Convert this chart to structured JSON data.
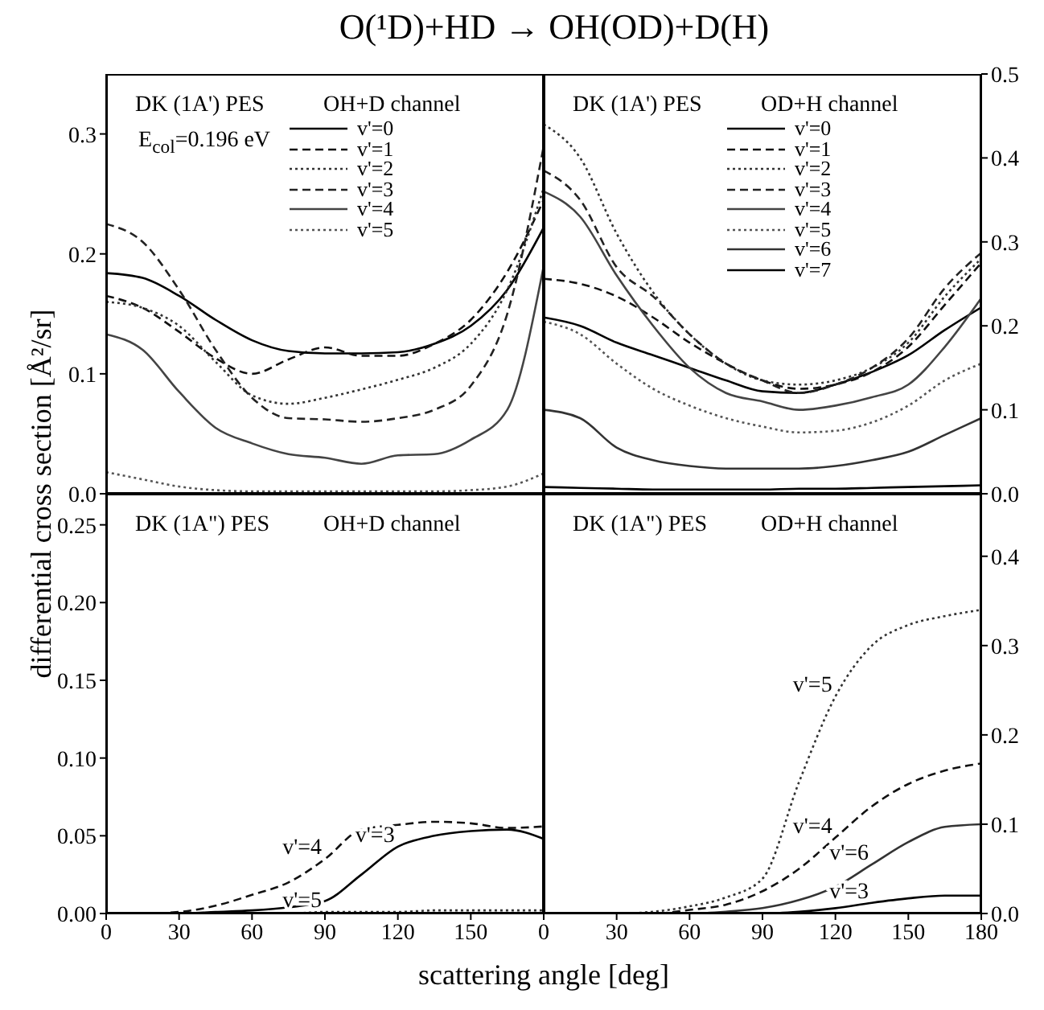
{
  "chart_data": [
    {
      "type": "line",
      "title": "O(¹D)+HD → OH(OD)+D(H)",
      "ylabel": "differential cross section [Å²/sr]",
      "annotations": [
        "DK (1A') PES",
        "OH+D channel",
        "E$_{col}$=0.196 eV"
      ],
      "legend": "top right",
      "tick_labels": "y",
      "xlim": [
        0,
        180
      ],
      "xticks": [
        0,
        30,
        60,
        90,
        120,
        150,
        180
      ],
      "ylim": [
        0,
        0.35
      ],
      "yticks": [
        {
          "value": 0,
          "label": "0.0"
        },
        0.1,
        0.2,
        0.3
      ],
      "x": [
        0,
        15,
        30,
        45,
        60,
        75,
        90,
        105,
        120,
        135,
        150,
        165,
        180
      ],
      "series": [
        {
          "name": "v'=0",
          "color": "#000000",
          "line_style": "solid",
          "values": [
            0.184,
            0.18,
            0.165,
            0.145,
            0.128,
            0.119,
            0.117,
            0.117,
            0.118,
            0.125,
            0.14,
            0.17,
            0.222
          ]
        },
        {
          "name": "v'=1",
          "color": "#111111",
          "line_style": "dashed",
          "values": [
            0.165,
            0.155,
            0.135,
            0.113,
            0.1,
            0.112,
            0.122,
            0.115,
            0.115,
            0.125,
            0.145,
            0.185,
            0.245
          ]
        },
        {
          "name": "v'=2",
          "color": "#333333",
          "line_style": "dotted",
          "values": [
            0.16,
            0.155,
            0.14,
            0.11,
            0.082,
            0.075,
            0.08,
            0.087,
            0.095,
            0.105,
            0.125,
            0.17,
            0.255
          ]
        },
        {
          "name": "v'=3",
          "color": "#222222",
          "line_style": "dashed",
          "values": [
            0.225,
            0.21,
            0.17,
            0.12,
            0.08,
            0.063,
            0.062,
            0.06,
            0.063,
            0.07,
            0.09,
            0.15,
            0.29
          ]
        },
        {
          "name": "v'=4",
          "color": "#444444",
          "line_style": "solid",
          "values": [
            0.133,
            0.12,
            0.085,
            0.055,
            0.042,
            0.033,
            0.03,
            0.025,
            0.032,
            0.033,
            0.045,
            0.07,
            0.19
          ]
        },
        {
          "name": "v'=5",
          "color": "#555555",
          "line_style": "dotted",
          "values": [
            0.018,
            0.012,
            0.006,
            0.003,
            0.002,
            0.002,
            0.002,
            0.002,
            0.002,
            0.002,
            0.003,
            0.006,
            0.017
          ]
        }
      ]
    },
    {
      "type": "line",
      "annotations": [
        "DK (1A') PES",
        "OD+H channel"
      ],
      "legend": "top right",
      "tick_labels": "y",
      "xlim": [
        0,
        180
      ],
      "xticks": [
        0,
        30,
        60,
        90,
        120,
        150,
        180
      ],
      "ylim": [
        0,
        0.5
      ],
      "yticks": [
        {
          "value": 0,
          "label": "0.0"
        },
        0.1,
        0.2,
        0.3,
        0.4,
        0.5
      ],
      "x": [
        0,
        15,
        30,
        45,
        60,
        75,
        90,
        105,
        120,
        135,
        150,
        165,
        180
      ],
      "series": [
        {
          "name": "v'=0",
          "color": "#000000",
          "line_style": "solid",
          "values": [
            0.21,
            0.2,
            0.18,
            0.165,
            0.15,
            0.135,
            0.122,
            0.12,
            0.13,
            0.145,
            0.165,
            0.195,
            0.222
          ]
        },
        {
          "name": "v'=1",
          "color": "#111111",
          "line_style": "dashed",
          "values": [
            0.256,
            0.25,
            0.235,
            0.21,
            0.18,
            0.155,
            0.135,
            0.125,
            0.13,
            0.145,
            0.175,
            0.225,
            0.275
          ]
        },
        {
          "name": "v'=2",
          "color": "#333333",
          "line_style": "dotted",
          "values": [
            0.44,
            0.4,
            0.31,
            0.24,
            0.19,
            0.155,
            0.135,
            0.13,
            0.135,
            0.15,
            0.18,
            0.235,
            0.28
          ]
        },
        {
          "name": "v'=3",
          "color": "#222222",
          "line_style": "dashed",
          "values": [
            0.385,
            0.35,
            0.27,
            0.235,
            0.19,
            0.155,
            0.135,
            0.12,
            0.13,
            0.15,
            0.185,
            0.245,
            0.287
          ]
        },
        {
          "name": "v'=4",
          "color": "#444444",
          "line_style": "solid",
          "values": [
            0.36,
            0.33,
            0.26,
            0.2,
            0.15,
            0.12,
            0.11,
            0.1,
            0.105,
            0.115,
            0.13,
            0.175,
            0.233
          ]
        },
        {
          "name": "v'=5",
          "color": "#555555",
          "line_style": "dotted",
          "values": [
            0.205,
            0.19,
            0.155,
            0.125,
            0.105,
            0.09,
            0.08,
            0.073,
            0.075,
            0.085,
            0.105,
            0.135,
            0.155
          ]
        },
        {
          "name": "v'=6",
          "color": "#333333",
          "line_style": "solid",
          "values": [
            0.1,
            0.09,
            0.055,
            0.04,
            0.033,
            0.03,
            0.03,
            0.03,
            0.033,
            0.04,
            0.05,
            0.07,
            0.09
          ]
        },
        {
          "name": "v'=7",
          "color": "#000000",
          "line_style": "solid",
          "values": [
            0.008,
            0.007,
            0.006,
            0.005,
            0.005,
            0.005,
            0.005,
            0.006,
            0.006,
            0.007,
            0.008,
            0.009,
            0.01
          ]
        }
      ]
    },
    {
      "type": "line",
      "xlabel": "scattering angle [deg]",
      "annotations": [
        "DK (1A\") PES",
        "OH+D channel"
      ],
      "xlim": [
        0,
        180
      ],
      "xticks": [
        0,
        30,
        60,
        90,
        120,
        150,
        {
          "value": 180,
          "label": null
        }
      ],
      "ylim": [
        0,
        0.27
      ],
      "yticks": [
        {
          "value": 0,
          "label": "0.00"
        },
        0.05,
        {
          "value": 0.1,
          "label": "0.10"
        },
        0.15,
        {
          "value": 0.2,
          "label": "0.20"
        },
        0.25
      ],
      "x": [
        0,
        15,
        30,
        45,
        60,
        75,
        90,
        105,
        120,
        135,
        150,
        165,
        180
      ],
      "series": [
        {
          "name": "v'=4",
          "color": "#111111",
          "line_style": "dashed",
          "values": [
            0,
            0,
            0.001,
            0.005,
            0.012,
            0.02,
            0.035,
            0.054,
            0.057,
            0.059,
            0.058,
            0.055,
            0.056
          ]
        },
        {
          "name": "v'=3",
          "color": "#000000",
          "line_style": "solid",
          "values": [
            0,
            0,
            0,
            0.001,
            0.002,
            0.004,
            0.008,
            0.025,
            0.043,
            0.05,
            0.053,
            0.054,
            0.048
          ]
        },
        {
          "name": "v'=5",
          "color": "#333333",
          "line_style": "dotted",
          "values": [
            0,
            0,
            0,
            0,
            0,
            0,
            0.001,
            0.001,
            0.001,
            0.002,
            0.002,
            0.002,
            0.002
          ]
        }
      ]
    },
    {
      "type": "line",
      "annotations": [
        "DK (1A\") PES",
        "OD+H channel"
      ],
      "xlim": [
        0,
        180
      ],
      "xticks": [
        0,
        30,
        60,
        90,
        120,
        150,
        180
      ],
      "ylim": [
        0,
        0.47
      ],
      "yticks": [
        {
          "value": 0,
          "label": "0.0"
        },
        0.1,
        0.2,
        0.3,
        0.4
      ],
      "x": [
        0,
        15,
        30,
        45,
        60,
        75,
        90,
        105,
        120,
        135,
        150,
        165,
        180
      ],
      "series": [
        {
          "name": "v'=5",
          "color": "#333333",
          "line_style": "dotted",
          "values": [
            0,
            0,
            0,
            0.002,
            0.008,
            0.018,
            0.039,
            0.147,
            0.243,
            0.3,
            0.323,
            0.333,
            0.34
          ]
        },
        {
          "name": "v'=4",
          "color": "#111111",
          "line_style": "dashed",
          "values": [
            0,
            0,
            0,
            0,
            0.004,
            0.01,
            0.025,
            0.05,
            0.085,
            0.12,
            0.145,
            0.16,
            0.168
          ]
        },
        {
          "name": "v'=6",
          "color": "#333333",
          "line_style": "solid",
          "values": [
            0,
            0,
            0,
            0,
            0,
            0.002,
            0.006,
            0.015,
            0.03,
            0.055,
            0.08,
            0.097,
            0.1
          ]
        },
        {
          "name": "v'=3",
          "color": "#000000",
          "line_style": "solid",
          "values": [
            0,
            0,
            0,
            0,
            0,
            0,
            0,
            0.002,
            0.006,
            0.012,
            0.017,
            0.02,
            0.02
          ]
        }
      ]
    }
  ]
}
